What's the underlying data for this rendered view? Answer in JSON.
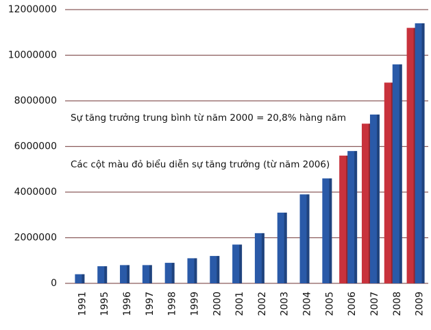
{
  "chart_data": {
    "type": "bar",
    "annotations": [
      "Sự tăng trưởng trung bình từ năm 2000 = 20,8% hàng năm",
      "Các cột màu đỏ biểu diễn sự tăng trưởng (từ năm 2006)"
    ],
    "categories": [
      "1991",
      "1995",
      "1996",
      "1997",
      "1998",
      "1999",
      "2000",
      "2001",
      "2002",
      "2003",
      "2004",
      "2005",
      "2006",
      "2007",
      "2008",
      "2009"
    ],
    "series": [
      {
        "color": "#c8323c",
        "values": [
          null,
          null,
          null,
          null,
          null,
          null,
          null,
          null,
          null,
          null,
          null,
          null,
          5600000,
          7000000,
          8800000,
          11200000
        ]
      },
      {
        "color": "#2a5aa8",
        "values": [
          400000,
          750000,
          800000,
          800000,
          900000,
          1100000,
          1200000,
          1700000,
          2200000,
          3100000,
          3900000,
          4600000,
          5800000,
          7400000,
          9600000,
          11400000
        ]
      }
    ],
    "ylim": [
      0,
      12000000
    ],
    "yticks": [
      0,
      2000000,
      4000000,
      6000000,
      8000000,
      10000000,
      12000000
    ],
    "grid": true
  }
}
